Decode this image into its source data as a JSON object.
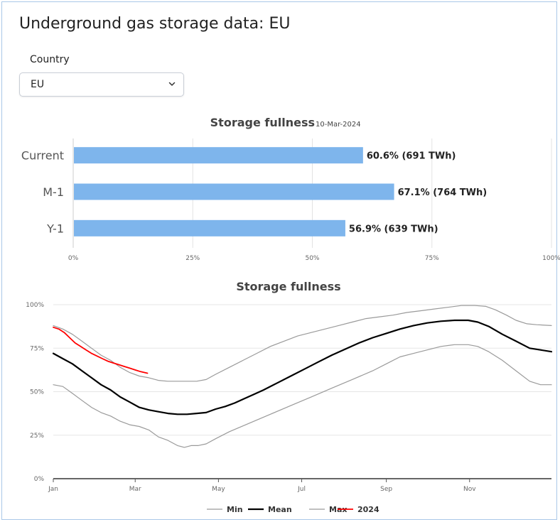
{
  "page": {
    "title": "Underground gas storage data: EU"
  },
  "filter": {
    "label": "Country",
    "selected": "EU"
  },
  "colors": {
    "bar": "#7eb5ec",
    "min": "#9a9a9a",
    "mean": "#000000",
    "max": "#9a9a9a",
    "y2024": "#ff0000",
    "frame": "#aac8e8"
  },
  "chart_data": [
    {
      "type": "bar",
      "orientation": "horizontal",
      "title": "Storage fullness",
      "subtitle": "10-Mar-2024",
      "categories": [
        "Current",
        "M-1",
        "Y-1"
      ],
      "values": [
        60.6,
        67.1,
        56.9
      ],
      "data_labels": [
        "60.6% (691 TWh)",
        "67.1% (764 TWh)",
        "56.9% (639 TWh)"
      ],
      "xlim": [
        0,
        100
      ],
      "xticks": [
        "0%",
        "25%",
        "50%",
        "75%",
        "100%"
      ],
      "grid": true
    },
    {
      "type": "line",
      "title": "Storage fullness",
      "x_unit": "day_of_year",
      "xlim": [
        1,
        366
      ],
      "ylim": [
        0,
        100
      ],
      "xticks": [
        {
          "day": 1,
          "label": "Jan"
        },
        {
          "day": 61,
          "label": "Mar"
        },
        {
          "day": 122,
          "label": "May"
        },
        {
          "day": 183,
          "label": "Jul"
        },
        {
          "day": 245,
          "label": "Sep"
        },
        {
          "day": 306,
          "label": "Nov"
        }
      ],
      "yticks": [
        "0%",
        "25%",
        "50%",
        "75%",
        "100%"
      ],
      "grid": true,
      "legend_position": "bottom",
      "series": [
        {
          "name": "Min",
          "color": "#9a9a9a",
          "width": 1.2,
          "points": [
            [
              1,
              54
            ],
            [
              8,
              53
            ],
            [
              15,
              49
            ],
            [
              22,
              45
            ],
            [
              29,
              41
            ],
            [
              36,
              38
            ],
            [
              43,
              36
            ],
            [
              50,
              33
            ],
            [
              57,
              31
            ],
            [
              64,
              30
            ],
            [
              71,
              28
            ],
            [
              78,
              24
            ],
            [
              85,
              22
            ],
            [
              92,
              19
            ],
            [
              97,
              18
            ],
            [
              102,
              19
            ],
            [
              107,
              19
            ],
            [
              113,
              20
            ],
            [
              120,
              23
            ],
            [
              130,
              27
            ],
            [
              145,
              32
            ],
            [
              160,
              37
            ],
            [
              175,
              42
            ],
            [
              190,
              47
            ],
            [
              205,
              52
            ],
            [
              220,
              57
            ],
            [
              235,
              62
            ],
            [
              245,
              66
            ],
            [
              255,
              70
            ],
            [
              265,
              72
            ],
            [
              275,
              74
            ],
            [
              285,
              76
            ],
            [
              295,
              77
            ],
            [
              305,
              77
            ],
            [
              312,
              76
            ],
            [
              320,
              73
            ],
            [
              330,
              68
            ],
            [
              340,
              62
            ],
            [
              350,
              56
            ],
            [
              358,
              54
            ],
            [
              366,
              54
            ]
          ]
        },
        {
          "name": "Mean",
          "color": "#000000",
          "width": 2.2,
          "points": [
            [
              1,
              72
            ],
            [
              8,
              69
            ],
            [
              15,
              66
            ],
            [
              22,
              62
            ],
            [
              29,
              58
            ],
            [
              36,
              54
            ],
            [
              43,
              51
            ],
            [
              50,
              47
            ],
            [
              57,
              44
            ],
            [
              64,
              41
            ],
            [
              71,
              39.5
            ],
            [
              78,
              38.5
            ],
            [
              85,
              37.5
            ],
            [
              92,
              37
            ],
            [
              99,
              37
            ],
            [
              106,
              37.5
            ],
            [
              113,
              38
            ],
            [
              120,
              40
            ],
            [
              127,
              41.5
            ],
            [
              134,
              43.5
            ],
            [
              141,
              46
            ],
            [
              148,
              48.5
            ],
            [
              155,
              51
            ],
            [
              165,
              55
            ],
            [
              175,
              59
            ],
            [
              185,
              63
            ],
            [
              195,
              67
            ],
            [
              205,
              71
            ],
            [
              215,
              74.5
            ],
            [
              225,
              78
            ],
            [
              235,
              81
            ],
            [
              245,
              83.5
            ],
            [
              255,
              86
            ],
            [
              265,
              88
            ],
            [
              275,
              89.5
            ],
            [
              285,
              90.5
            ],
            [
              295,
              91
            ],
            [
              305,
              91
            ],
            [
              312,
              90
            ],
            [
              320,
              87.5
            ],
            [
              330,
              83
            ],
            [
              340,
              79
            ],
            [
              350,
              75
            ],
            [
              358,
              74
            ],
            [
              366,
              73
            ]
          ]
        },
        {
          "name": "Max",
          "color": "#9a9a9a",
          "width": 1.2,
          "points": [
            [
              1,
              88
            ],
            [
              8,
              86
            ],
            [
              15,
              83
            ],
            [
              22,
              79
            ],
            [
              29,
              75
            ],
            [
              36,
              71
            ],
            [
              43,
              68
            ],
            [
              50,
              64
            ],
            [
              57,
              61
            ],
            [
              64,
              59
            ],
            [
              71,
              58
            ],
            [
              78,
              56.5
            ],
            [
              85,
              56
            ],
            [
              92,
              56
            ],
            [
              99,
              56
            ],
            [
              106,
              56
            ],
            [
              113,
              57
            ],
            [
              120,
              60
            ],
            [
              130,
              64
            ],
            [
              140,
              68
            ],
            [
              150,
              72
            ],
            [
              160,
              76
            ],
            [
              170,
              79
            ],
            [
              180,
              82
            ],
            [
              190,
              84
            ],
            [
              200,
              86
            ],
            [
              210,
              88
            ],
            [
              220,
              90
            ],
            [
              230,
              92
            ],
            [
              240,
              93
            ],
            [
              250,
              94
            ],
            [
              260,
              95.5
            ],
            [
              270,
              96.5
            ],
            [
              280,
              97.5
            ],
            [
              290,
              98.5
            ],
            [
              300,
              99.5
            ],
            [
              310,
              99.5
            ],
            [
              318,
              99
            ],
            [
              325,
              97
            ],
            [
              333,
              94
            ],
            [
              340,
              91
            ],
            [
              348,
              89
            ],
            [
              355,
              88.5
            ],
            [
              366,
              88
            ]
          ]
        },
        {
          "name": "2024",
          "color": "#ff0000",
          "width": 1.8,
          "points": [
            [
              1,
              87
            ],
            [
              5,
              86
            ],
            [
              9,
              84
            ],
            [
              13,
              81
            ],
            [
              17,
              78
            ],
            [
              21,
              76
            ],
            [
              25,
              74
            ],
            [
              29,
              72
            ],
            [
              33,
              70.5
            ],
            [
              37,
              69
            ],
            [
              41,
              67.5
            ],
            [
              45,
              66.5
            ],
            [
              49,
              65.5
            ],
            [
              53,
              64.5
            ],
            [
              57,
              63.5
            ],
            [
              61,
              62.5
            ],
            [
              65,
              61.5
            ],
            [
              70,
              60.6
            ]
          ]
        }
      ]
    }
  ]
}
